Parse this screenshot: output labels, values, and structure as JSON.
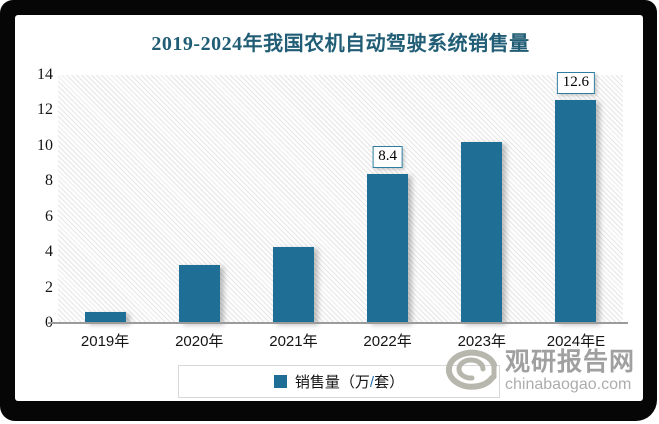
{
  "colors": {
    "frame": "#060606",
    "bar": "#1F6E96",
    "title_text": "#215E76",
    "annotation_border": "#2E7DA0",
    "axis_line": "#9B9B9B",
    "legend_border": "#D8D8D8",
    "slash_blue": "#2E74B5",
    "watermark_text": "#A0A0A0",
    "watermark_domain": "#ADADAD"
  },
  "title": "2019-2024年我国农机自动驾驶系统销售量",
  "chart_data": {
    "type": "bar",
    "title": "2019-2024年我国农机自动驾驶系统销售量",
    "categories": [
      "2019年",
      "2020年",
      "2021年",
      "2022年",
      "2023年",
      "2024年E"
    ],
    "series": [
      {
        "name": "销售量（万/套）",
        "values": [
          0.6,
          3.3,
          4.3,
          8.4,
          10.2,
          12.6
        ]
      }
    ],
    "data_labels": [
      "",
      "",
      "",
      "8.4",
      "",
      "12.6"
    ],
    "ylim": [
      0,
      14
    ],
    "yticks": [
      0,
      2,
      4,
      6,
      8,
      10,
      12,
      14
    ],
    "grid": false,
    "legend_position": "bottom",
    "plot_background": "diagonal-hatch"
  },
  "legend": {
    "parts": {
      "before": "销售量（万",
      "slash": "/",
      "after": "套）"
    }
  },
  "watermark": {
    "brand": "观研报告网",
    "domain": "chinabaogao.com",
    "logo": "swirl-g-icon"
  }
}
